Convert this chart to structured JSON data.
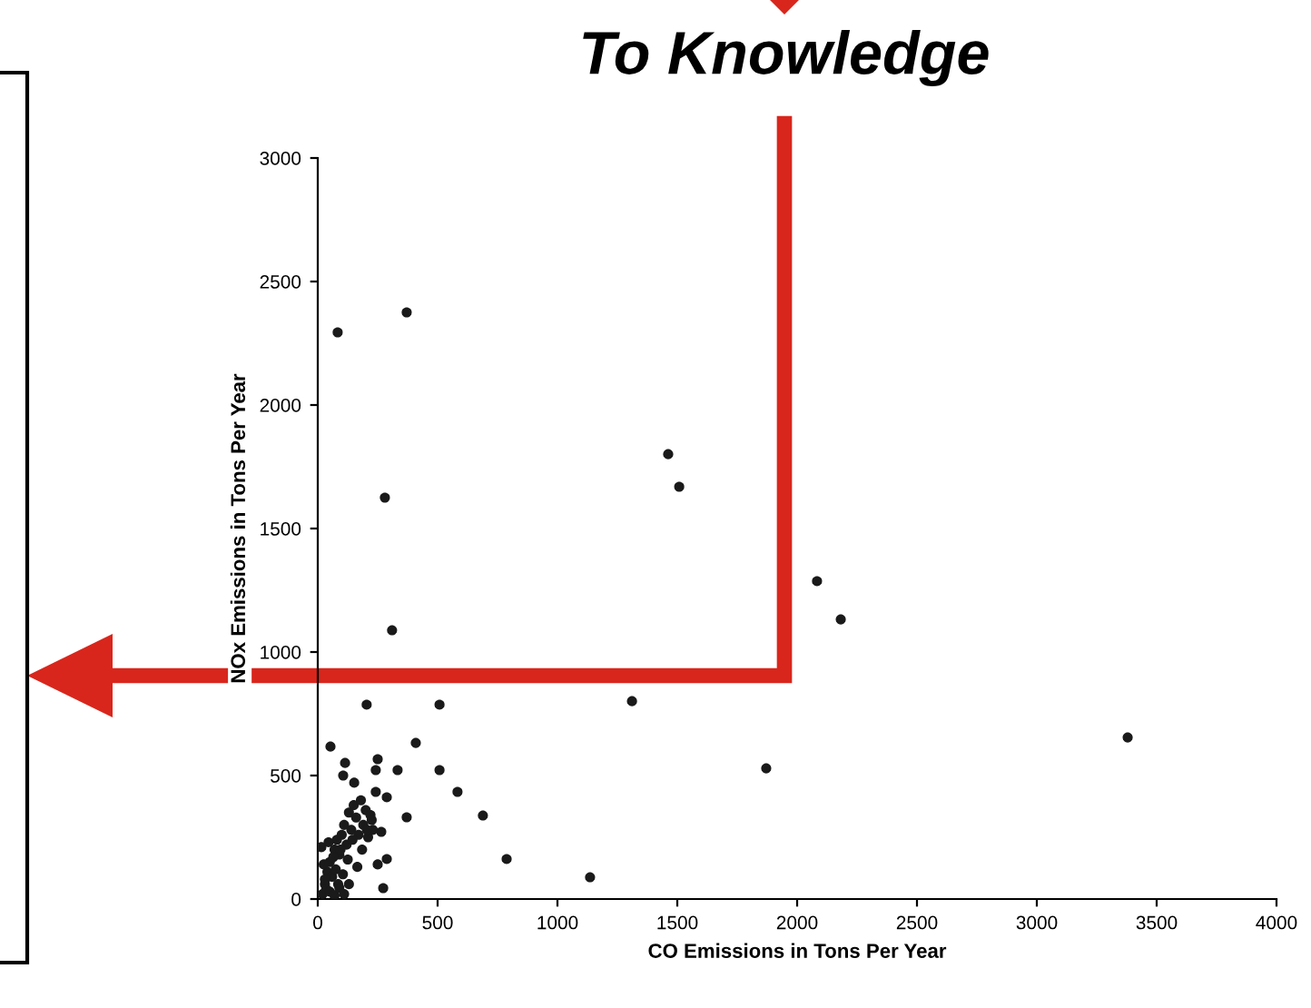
{
  "chart_data": {
    "type": "scatter",
    "xlabel": "CO Emissions in Tons Per Year",
    "ylabel": "NOx Emissions in Tons Per Year",
    "annotations": [
      "To Knowledge"
    ],
    "xlim": [
      0,
      4000
    ],
    "xticks": [
      0,
      500,
      1000,
      1500,
      2000,
      2500,
      3000,
      3500,
      4000
    ],
    "ylim": [
      0,
      3000
    ],
    "yticks": [
      0,
      500,
      1000,
      1500,
      2000,
      2500,
      3000
    ],
    "grid": false,
    "legend": false,
    "marker": "circle",
    "series": [
      {
        "color": "#1a1a1a",
        "x": [
          83,
          371,
          280,
          310,
          1462,
          1508,
          204,
          508,
          1311,
          1871,
          409,
          508,
          583,
          689,
          788,
          1136,
          333,
          371,
          273,
          53,
          114,
          106,
          152,
          250,
          242,
          242,
          288,
          288,
          250,
          265,
          2083,
          2182,
          3379,
          20,
          30,
          40,
          50,
          60,
          70,
          80,
          90,
          100,
          110,
          120,
          130,
          140,
          150,
          160,
          170,
          180,
          190,
          200,
          210,
          220,
          230,
          15,
          25,
          35,
          45,
          65,
          75,
          85,
          95,
          105,
          125,
          145,
          165,
          185,
          205,
          225,
          30,
          50,
          70,
          90,
          110,
          130
        ],
        "values": [
          2294,
          2375,
          1625,
          1088,
          1801,
          1669,
          787,
          787,
          801,
          529,
          632,
          522,
          434,
          338,
          162,
          88,
          522,
          331,
          44,
          617,
          551,
          500,
          471,
          566,
          522,
          434,
          412,
          162,
          140,
          272,
          1287,
          1132,
          654,
          20,
          60,
          110,
          150,
          90,
          200,
          240,
          180,
          260,
          300,
          220,
          350,
          280,
          380,
          330,
          260,
          400,
          300,
          360,
          250,
          340,
          280,
          210,
          140,
          40,
          230,
          170,
          120,
          60,
          200,
          100,
          160,
          240,
          130,
          200,
          280,
          320,
          80,
          30,
          15,
          45,
          20,
          60
        ]
      }
    ]
  }
}
